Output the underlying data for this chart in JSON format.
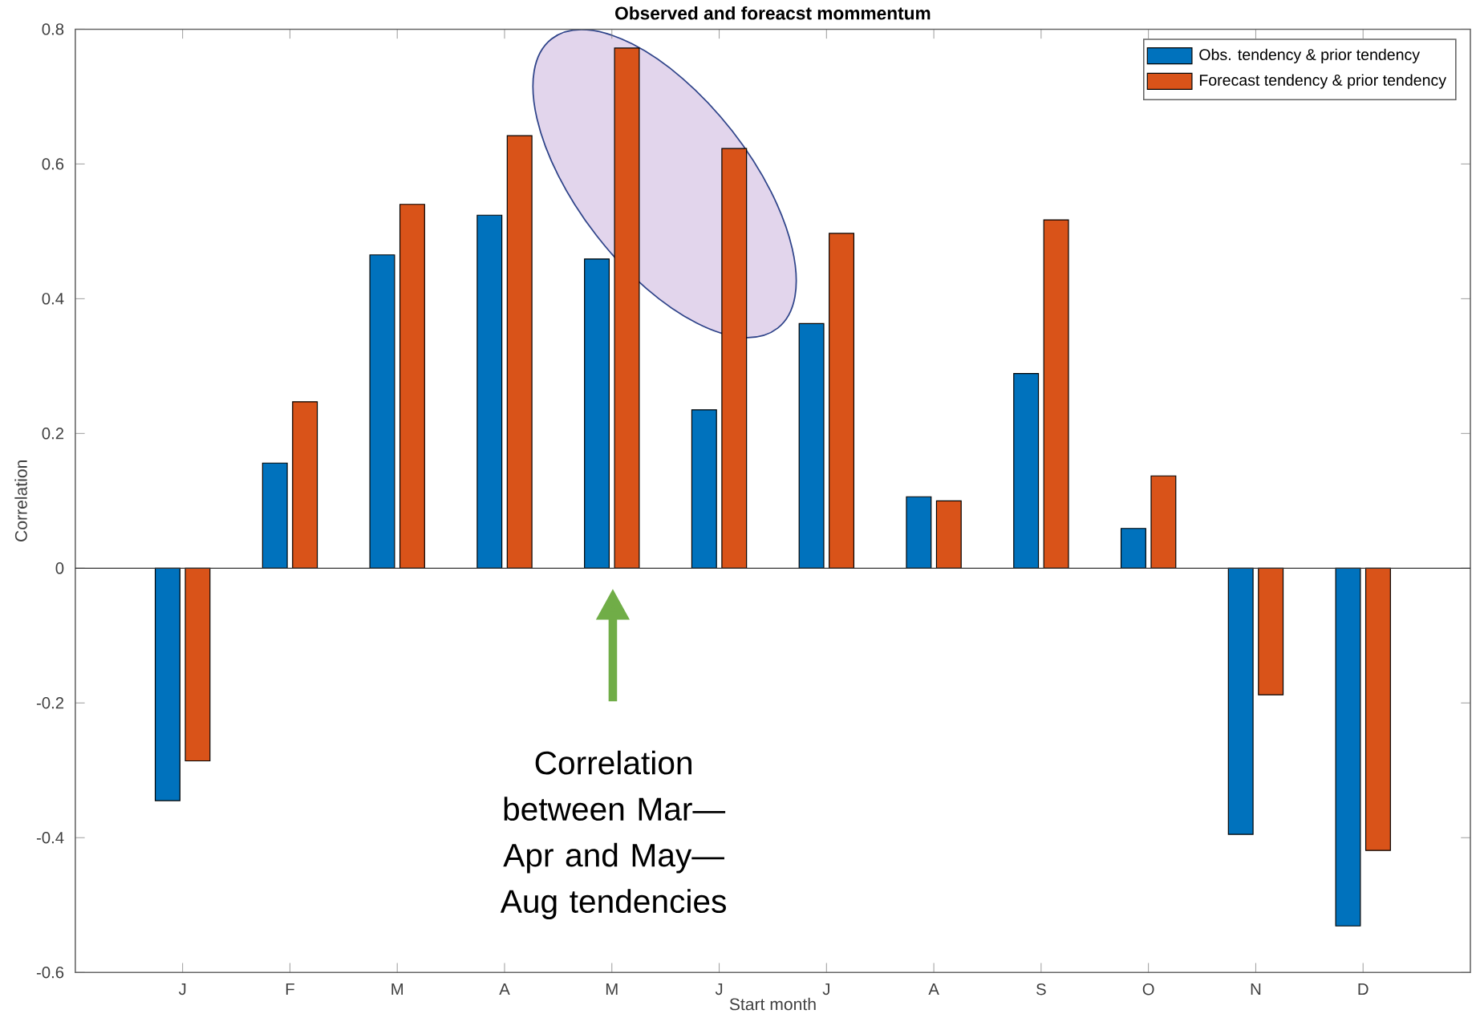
{
  "chart_data": {
    "type": "bar",
    "title": "Observed and foreacst mommentum",
    "xlabel": "Start month",
    "ylabel": "Correlation",
    "categories": [
      "J",
      "F",
      "M",
      "A",
      "M",
      "J",
      "J",
      "A",
      "S",
      "O",
      "N",
      "D"
    ],
    "series": [
      {
        "name": "Obs. tendency & prior tendency",
        "color": "#0072bd",
        "values": [
          -0.345,
          0.156,
          0.465,
          0.524,
          0.459,
          0.235,
          0.363,
          0.106,
          0.289,
          0.059,
          -0.395,
          -0.531
        ]
      },
      {
        "name": "Forecast tendency & prior tendency",
        "color": "#d95319",
        "values": [
          -0.286,
          0.247,
          0.54,
          0.642,
          0.772,
          0.623,
          0.497,
          0.1,
          0.517,
          0.137,
          -0.188,
          -0.419
        ]
      }
    ],
    "ylim": [
      -0.6,
      0.8
    ],
    "yticks": [
      -0.6,
      -0.4,
      -0.2,
      0,
      0.2,
      0.4,
      0.6,
      0.8
    ],
    "legend": "top right",
    "annotations": [
      "Correlation between Mar—Apr and May—Aug tendencies"
    ]
  }
}
